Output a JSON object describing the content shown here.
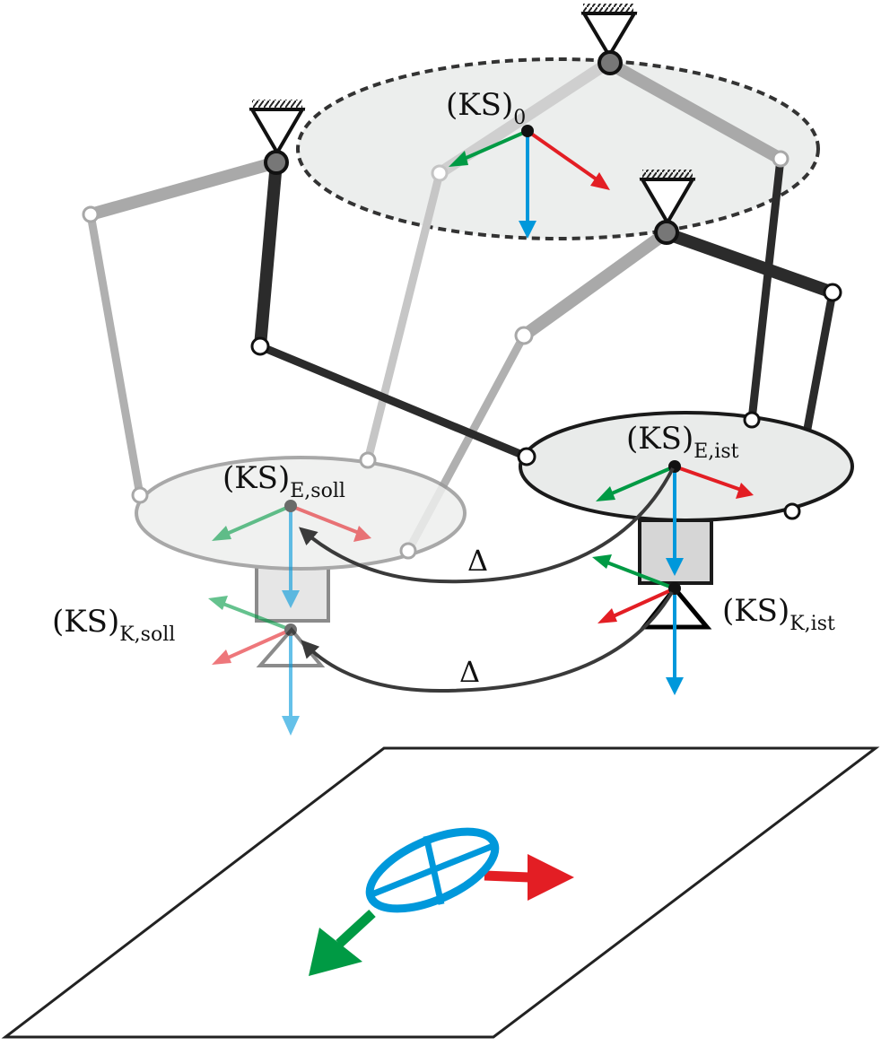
{
  "labels": {
    "ks0": {
      "main": "(KS)",
      "sub": "0"
    },
    "ks_e_ist": {
      "main": "(KS)",
      "sub": "E,ist"
    },
    "ks_e_soll": {
      "main": "(KS)",
      "sub": "E,soll"
    },
    "ks_k_ist": {
      "main": "(KS)",
      "sub": "K,ist"
    },
    "ks_k_soll": {
      "main": "(KS)",
      "sub": "K,soll"
    },
    "delta_1": "Δ",
    "delta_2": "Δ"
  },
  "colors": {
    "x_axis": "#e31e24",
    "y_axis": "#009a44",
    "z_axis": "#0098db",
    "dark_link": "#2b2b2b",
    "light_link": "#a9a9a9",
    "lighter_link": "#c8c8c8",
    "platform_fill": "#e9ebea"
  }
}
